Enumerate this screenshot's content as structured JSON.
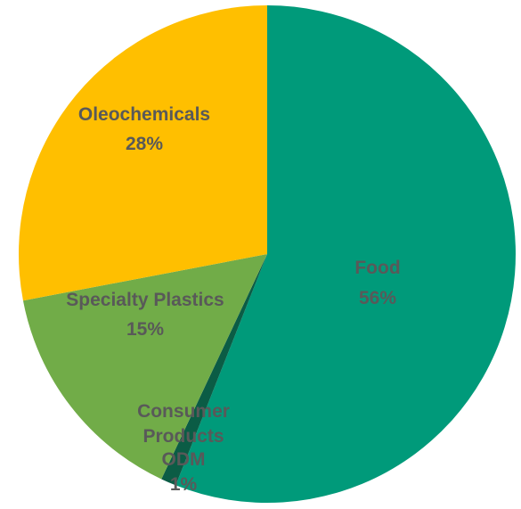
{
  "chart_data": {
    "type": "pie",
    "slices": [
      {
        "label": "Food",
        "value": 56,
        "value_label": "56%",
        "color": "#009a7a"
      },
      {
        "label": "Consumer Products ODM",
        "value": 1,
        "value_label": "1%",
        "color": "#0b5c45"
      },
      {
        "label": "Specialty Plastics",
        "value": 15,
        "value_label": "15%",
        "color": "#71ac48"
      },
      {
        "label": "Oleochemicals",
        "value": 28,
        "value_label": "28%",
        "color": "#ffbf00"
      }
    ],
    "label_color": "#595959",
    "start_angle": "12 o'clock",
    "direction": "clockwise"
  }
}
